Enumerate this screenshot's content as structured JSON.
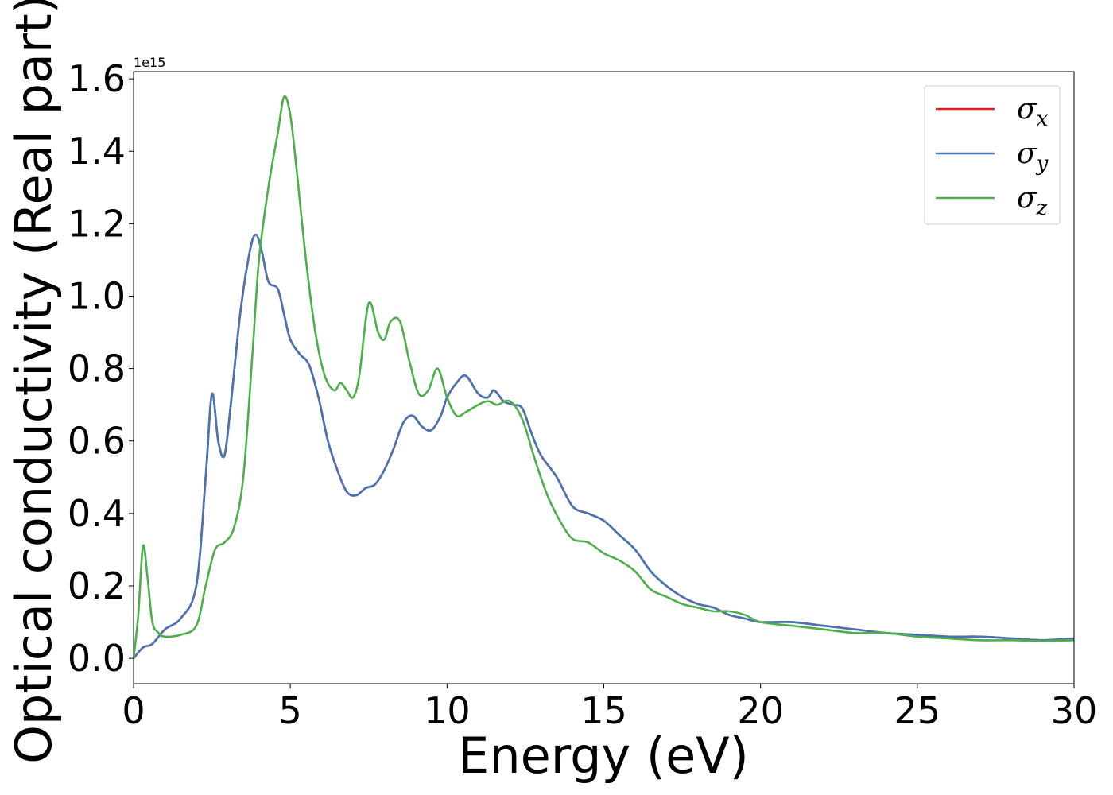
{
  "chart_data": {
    "type": "line",
    "xlabel": "Energy (eV)",
    "ylabel": "Optical conductivity (Real part)",
    "y_offset_label": "1e15",
    "xlim": [
      0,
      30
    ],
    "ylim": [
      -0.07,
      1.62
    ],
    "xticks": [
      0,
      5,
      10,
      15,
      20,
      25,
      30
    ],
    "xtick_labels": [
      "0",
      "5",
      "10",
      "15",
      "20",
      "25",
      "30"
    ],
    "yticks": [
      0.0,
      0.2,
      0.4,
      0.6,
      0.8,
      1.0,
      1.2,
      1.4,
      1.6
    ],
    "ytick_labels": [
      "0.0",
      "0.2",
      "0.4",
      "0.6",
      "0.8",
      "1.0",
      "1.2",
      "1.4",
      "1.6"
    ],
    "grid": false,
    "legend_position": "top-right",
    "series": [
      {
        "name": "σ",
        "subscript": "x",
        "color": "#e41a1c",
        "x": [
          0,
          0.3,
          0.6,
          1.0,
          1.5,
          2.0,
          2.3,
          2.5,
          2.7,
          2.9,
          3.1,
          3.4,
          3.7,
          3.9,
          4.1,
          4.3,
          4.6,
          4.8,
          5.0,
          5.3,
          5.6,
          5.9,
          6.2,
          6.5,
          6.8,
          7.1,
          7.4,
          7.7,
          8.0,
          8.3,
          8.6,
          8.9,
          9.2,
          9.5,
          9.8,
          10.0,
          10.3,
          10.6,
          11.0,
          11.3,
          11.5,
          11.8,
          12.1,
          12.4,
          12.7,
          13.0,
          13.5,
          14.0,
          14.5,
          15.0,
          15.5,
          16.0,
          16.5,
          17.0,
          17.5,
          18.0,
          18.5,
          19.0,
          19.5,
          20.0,
          21.0,
          22.0,
          23.0,
          24.0,
          25.0,
          26.0,
          27.0,
          28.0,
          29.0,
          30.0
        ],
        "values": [
          0.0,
          0.03,
          0.04,
          0.08,
          0.11,
          0.2,
          0.5,
          0.73,
          0.6,
          0.56,
          0.7,
          0.95,
          1.12,
          1.17,
          1.12,
          1.04,
          1.02,
          0.95,
          0.88,
          0.84,
          0.81,
          0.72,
          0.6,
          0.52,
          0.46,
          0.45,
          0.47,
          0.48,
          0.52,
          0.58,
          0.65,
          0.67,
          0.64,
          0.63,
          0.67,
          0.72,
          0.76,
          0.78,
          0.73,
          0.72,
          0.74,
          0.71,
          0.7,
          0.69,
          0.62,
          0.56,
          0.5,
          0.42,
          0.4,
          0.38,
          0.34,
          0.3,
          0.24,
          0.2,
          0.17,
          0.15,
          0.14,
          0.12,
          0.11,
          0.1,
          0.1,
          0.09,
          0.08,
          0.07,
          0.065,
          0.06,
          0.06,
          0.055,
          0.05,
          0.055
        ]
      },
      {
        "name": "σ",
        "subscript": "y",
        "color": "#4575b4",
        "x": [
          0,
          0.3,
          0.6,
          1.0,
          1.5,
          2.0,
          2.3,
          2.5,
          2.7,
          2.9,
          3.1,
          3.4,
          3.7,
          3.9,
          4.1,
          4.3,
          4.6,
          4.8,
          5.0,
          5.3,
          5.6,
          5.9,
          6.2,
          6.5,
          6.8,
          7.1,
          7.4,
          7.7,
          8.0,
          8.3,
          8.6,
          8.9,
          9.2,
          9.5,
          9.8,
          10.0,
          10.3,
          10.6,
          11.0,
          11.3,
          11.5,
          11.8,
          12.1,
          12.4,
          12.7,
          13.0,
          13.5,
          14.0,
          14.5,
          15.0,
          15.5,
          16.0,
          16.5,
          17.0,
          17.5,
          18.0,
          18.5,
          19.0,
          19.5,
          20.0,
          21.0,
          22.0,
          23.0,
          24.0,
          25.0,
          26.0,
          27.0,
          28.0,
          29.0,
          30.0
        ],
        "values": [
          0.0,
          0.03,
          0.04,
          0.08,
          0.11,
          0.2,
          0.5,
          0.73,
          0.6,
          0.56,
          0.7,
          0.95,
          1.12,
          1.17,
          1.12,
          1.04,
          1.02,
          0.95,
          0.88,
          0.84,
          0.81,
          0.72,
          0.6,
          0.52,
          0.46,
          0.45,
          0.47,
          0.48,
          0.52,
          0.58,
          0.65,
          0.67,
          0.64,
          0.63,
          0.67,
          0.72,
          0.76,
          0.78,
          0.73,
          0.72,
          0.74,
          0.71,
          0.7,
          0.69,
          0.62,
          0.56,
          0.5,
          0.42,
          0.4,
          0.38,
          0.34,
          0.3,
          0.24,
          0.2,
          0.17,
          0.15,
          0.14,
          0.12,
          0.11,
          0.1,
          0.1,
          0.09,
          0.08,
          0.07,
          0.065,
          0.06,
          0.06,
          0.055,
          0.05,
          0.055
        ]
      },
      {
        "name": "σ",
        "subscript": "z",
        "color": "#4daf4a",
        "x": [
          0,
          0.15,
          0.3,
          0.45,
          0.6,
          0.8,
          1.0,
          1.5,
          2.0,
          2.3,
          2.6,
          2.9,
          3.2,
          3.5,
          3.8,
          4.0,
          4.3,
          4.6,
          4.8,
          5.0,
          5.2,
          5.5,
          5.8,
          6.1,
          6.4,
          6.6,
          6.8,
          7.0,
          7.2,
          7.5,
          7.8,
          8.0,
          8.2,
          8.5,
          8.8,
          9.1,
          9.4,
          9.7,
          10.0,
          10.3,
          10.6,
          11.0,
          11.3,
          11.6,
          12.0,
          12.4,
          12.8,
          13.2,
          13.6,
          14.0,
          14.5,
          15.0,
          15.5,
          16.0,
          16.5,
          17.0,
          17.5,
          18.0,
          18.5,
          19.0,
          19.5,
          20.0,
          21.0,
          22.0,
          23.0,
          24.0,
          25.0,
          26.0,
          27.0,
          28.0,
          29.0,
          30.0
        ],
        "values": [
          0.0,
          0.12,
          0.31,
          0.22,
          0.1,
          0.07,
          0.06,
          0.065,
          0.09,
          0.2,
          0.3,
          0.32,
          0.36,
          0.5,
          0.85,
          1.1,
          1.3,
          1.45,
          1.55,
          1.5,
          1.35,
          1.1,
          0.9,
          0.78,
          0.74,
          0.76,
          0.74,
          0.72,
          0.78,
          0.98,
          0.9,
          0.88,
          0.93,
          0.93,
          0.82,
          0.73,
          0.74,
          0.8,
          0.72,
          0.67,
          0.68,
          0.7,
          0.71,
          0.7,
          0.71,
          0.66,
          0.55,
          0.45,
          0.38,
          0.33,
          0.32,
          0.29,
          0.27,
          0.24,
          0.19,
          0.17,
          0.15,
          0.14,
          0.13,
          0.13,
          0.12,
          0.1,
          0.09,
          0.08,
          0.07,
          0.07,
          0.06,
          0.055,
          0.05,
          0.05,
          0.048,
          0.05
        ]
      }
    ]
  }
}
